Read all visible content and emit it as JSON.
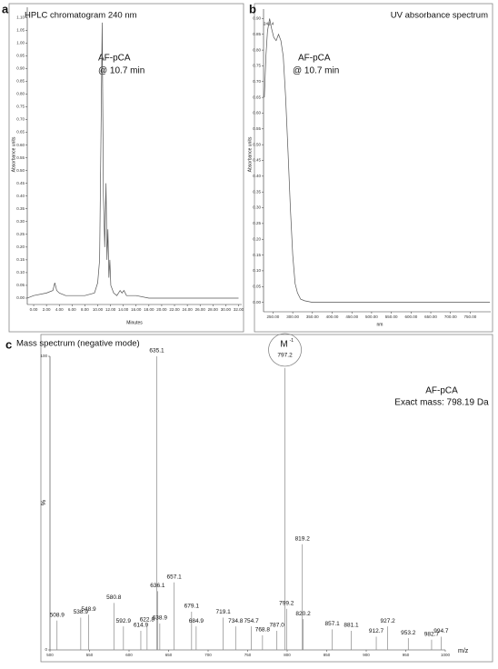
{
  "chart_data": [
    {
      "type": "line",
      "panel": "a",
      "title": "HPLC chromatogram 240 nm",
      "x_label": "Minutes",
      "y_label": "Absorbance units",
      "annotations": [
        "AF-pCA",
        "@ 10.7 min"
      ],
      "color": "#555555",
      "x": [
        -1,
        0,
        2,
        3,
        3.3,
        3.6,
        4,
        5,
        6,
        8,
        9.5,
        10.0,
        10.3,
        10.5,
        10.7,
        10.9,
        11.1,
        11.3,
        11.45,
        11.6,
        11.75,
        11.9,
        12.05,
        12.2,
        12.5,
        13,
        13.5,
        13.8,
        14.1,
        14.5,
        15,
        16,
        18,
        20,
        25,
        30,
        32
      ],
      "values": [
        0.0,
        0.01,
        0.02,
        0.03,
        0.06,
        0.03,
        0.02,
        0.01,
        0.01,
        0.01,
        0.02,
        0.06,
        0.15,
        0.6,
        1.08,
        0.4,
        0.2,
        0.45,
        0.15,
        0.27,
        0.08,
        0.15,
        0.05,
        0.04,
        0.02,
        0.01,
        0.03,
        0.02,
        0.03,
        0.01,
        0.01,
        0.01,
        0.0,
        0.0,
        0.0,
        0.0,
        0.0
      ],
      "xlim": [
        -1,
        32.5
      ],
      "xticks": [
        {
          "value": 0,
          "label": "0.00"
        },
        {
          "value": 2,
          "label": "2.00"
        },
        {
          "value": 4,
          "label": "4.00"
        },
        {
          "value": 6,
          "label": "6.00"
        },
        {
          "value": 8,
          "label": "8.00"
        },
        {
          "value": 10,
          "label": "10.00"
        },
        {
          "value": 12,
          "label": "12.00"
        },
        {
          "value": 14,
          "label": "14.00"
        },
        {
          "value": 16,
          "label": "16.00"
        },
        {
          "value": 18,
          "label": "18.00"
        },
        {
          "value": 20,
          "label": "20.00"
        },
        {
          "value": 22,
          "label": "22.00"
        },
        {
          "value": 24,
          "label": "24.00"
        },
        {
          "value": 26,
          "label": "26.00"
        },
        {
          "value": 28,
          "label": "28.00"
        },
        {
          "value": 30,
          "label": "30.00"
        },
        {
          "value": 32,
          "label": "32.00"
        }
      ],
      "ylim": [
        -0.025,
        1.14
      ],
      "yticks": [
        {
          "value": 0,
          "label": "0.00"
        },
        {
          "value": 0.05,
          "label": "0.05"
        },
        {
          "value": 0.1,
          "label": "0.10"
        },
        {
          "value": 0.15,
          "label": "0.15"
        },
        {
          "value": 0.2,
          "label": "0.20"
        },
        {
          "value": 0.25,
          "label": "0.25"
        },
        {
          "value": 0.3,
          "label": "0.30"
        },
        {
          "value": 0.35,
          "label": "0.35"
        },
        {
          "value": 0.4,
          "label": "0.40"
        },
        {
          "value": 0.45,
          "label": "0.45"
        },
        {
          "value": 0.5,
          "label": "0.50"
        },
        {
          "value": 0.55,
          "label": "0.55"
        },
        {
          "value": 0.6,
          "label": "0.60"
        },
        {
          "value": 0.65,
          "label": "0.65"
        },
        {
          "value": 0.7,
          "label": "0.70"
        },
        {
          "value": 0.75,
          "label": "0.75"
        },
        {
          "value": 0.8,
          "label": "0.80"
        },
        {
          "value": 0.85,
          "label": "0.85"
        },
        {
          "value": 0.9,
          "label": "0.90"
        },
        {
          "value": 0.95,
          "label": "0.95"
        },
        {
          "value": 1.0,
          "label": "1.00"
        },
        {
          "value": 1.05,
          "label": "1.05"
        },
        {
          "value": 1.1,
          "label": "1.10"
        }
      ]
    },
    {
      "type": "line",
      "panel": "b",
      "title": "UV absorbance spectrum",
      "x_label": "nm",
      "y_label": "Absorbance units",
      "annotations": [
        "AF-pCA",
        "@ 10.7 min"
      ],
      "peak_label": "241.4",
      "color": "#555555",
      "x": [
        228,
        232,
        236,
        241.4,
        246,
        252,
        258,
        264,
        270,
        276,
        282,
        288,
        294,
        300,
        306,
        312,
        320,
        330,
        350,
        400,
        500,
        600,
        700,
        800
      ],
      "values": [
        0.65,
        0.78,
        0.86,
        0.9,
        0.87,
        0.84,
        0.83,
        0.85,
        0.83,
        0.78,
        0.65,
        0.48,
        0.3,
        0.15,
        0.06,
        0.03,
        0.01,
        0.005,
        0,
        0,
        0,
        0,
        0,
        0
      ],
      "xlim": [
        226,
        802
      ],
      "xticks": [
        {
          "value": 250,
          "label": "250.00"
        },
        {
          "value": 300,
          "label": "300.00"
        },
        {
          "value": 350,
          "label": "350.00"
        },
        {
          "value": 400,
          "label": "400.00"
        },
        {
          "value": 450,
          "label": "450.00"
        },
        {
          "value": 500,
          "label": "500.00"
        },
        {
          "value": 550,
          "label": "550.00"
        },
        {
          "value": 600,
          "label": "600.00"
        },
        {
          "value": 650,
          "label": "650.00"
        },
        {
          "value": 700,
          "label": "700.00"
        },
        {
          "value": 750,
          "label": "750.00"
        }
      ],
      "ylim": [
        -0.03,
        0.93
      ],
      "yticks": [
        {
          "value": 0,
          "label": "0.00"
        },
        {
          "value": 0.05,
          "label": "0.05"
        },
        {
          "value": 0.1,
          "label": "0.10"
        },
        {
          "value": 0.15,
          "label": "0.15"
        },
        {
          "value": 0.2,
          "label": "0.20"
        },
        {
          "value": 0.25,
          "label": "0.25"
        },
        {
          "value": 0.3,
          "label": "0.30"
        },
        {
          "value": 0.35,
          "label": "0.35"
        },
        {
          "value": 0.4,
          "label": "0.40"
        },
        {
          "value": 0.45,
          "label": "0.45"
        },
        {
          "value": 0.5,
          "label": "0.50"
        },
        {
          "value": 0.55,
          "label": "0.55"
        },
        {
          "value": 0.6,
          "label": "0.60"
        },
        {
          "value": 0.65,
          "label": "0.65"
        },
        {
          "value": 0.7,
          "label": "0.70"
        },
        {
          "value": 0.75,
          "label": "0.75"
        },
        {
          "value": 0.8,
          "label": "0.80"
        },
        {
          "value": 0.85,
          "label": "0.85"
        },
        {
          "value": 0.9,
          "label": "0.90"
        }
      ]
    },
    {
      "type": "bar",
      "panel": "c",
      "title": "Mass spectrum (negative mode)",
      "x_label": "m/z",
      "y_label": "%",
      "annotations": [
        "AF-pCA",
        "Exact mass: 798.19 Da"
      ],
      "ion": "M",
      "ion_charge": "-1",
      "color": "#888888",
      "x": [
        508.9,
        538.9,
        548.9,
        580.8,
        592.9,
        614.9,
        622.8,
        635.1,
        636.1,
        638.9,
        657.1,
        679.1,
        684.9,
        719.1,
        734.8,
        754.7,
        768.8,
        787.0,
        797.2,
        799.2,
        819.2,
        820.2,
        857.1,
        881.1,
        912.7,
        927.2,
        953.2,
        982.7,
        994.7
      ],
      "x_labels": [
        "508.9",
        "538.9",
        "548.9",
        "580.8",
        "592.9",
        "614.9",
        "622.8",
        "635.1",
        "636.1",
        "638.9",
        "657.1",
        "679.1",
        "684.9",
        "719.1",
        "734.8",
        "754.7",
        "768.8",
        "787.0",
        "797.2",
        "799.2",
        "819.2",
        "820.2",
        "857.1",
        "881.1",
        "912.7",
        "927.2",
        "953.2",
        "982.7",
        "994.7"
      ],
      "values": [
        10,
        11,
        12,
        16,
        8,
        6.5,
        8.5,
        100,
        20,
        9,
        23,
        13,
        8,
        11,
        8,
        8,
        5,
        6.5,
        96,
        14,
        36,
        10.5,
        7,
        6.5,
        4.5,
        8,
        4,
        3.5,
        4.5
      ],
      "xlim": [
        500,
        1000
      ],
      "xticks": [
        500,
        550,
        600,
        650,
        700,
        750,
        800,
        850,
        900,
        950,
        1000
      ],
      "ylim": [
        0,
        100
      ],
      "yticks": [
        0,
        100
      ]
    }
  ]
}
